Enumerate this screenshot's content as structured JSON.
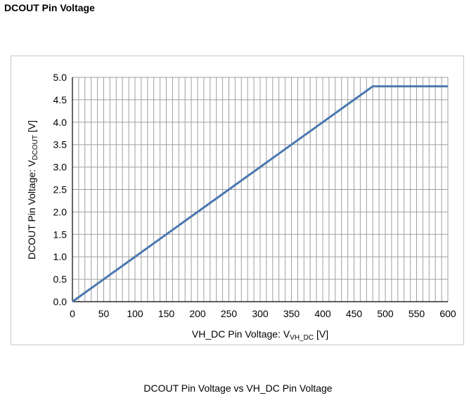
{
  "page": {
    "title": "DCOUT Pin Voltage",
    "caption": "DCOUT Pin Voltage vs VH_DC Pin Voltage"
  },
  "chart_data": {
    "type": "line",
    "xlabel": {
      "main": "VH_DC Pin Voltage: V",
      "sub": "VH_DC",
      "unit": " [V]"
    },
    "ylabel": {
      "main": "DCOUT Pin Voltage: V",
      "sub": "DCOUT",
      "unit": " [V]"
    },
    "xlim": [
      0,
      600
    ],
    "ylim": [
      0,
      5
    ],
    "xticks": [
      "0",
      "50",
      "100",
      "150",
      "200",
      "250",
      "300",
      "350",
      "400",
      "450",
      "500",
      "550",
      "600"
    ],
    "yticks": [
      "0.0",
      "0.5",
      "1.0",
      "1.5",
      "2.0",
      "2.5",
      "3.0",
      "3.5",
      "4.0",
      "4.5",
      "5.0"
    ],
    "grid": true,
    "line_color": "#4a78b0",
    "series": [
      {
        "x": [
          0,
          60,
          80,
          150,
          250,
          300,
          400,
          450,
          480,
          485,
          600
        ],
        "y": [
          0.0,
          0.6,
          0.8,
          1.5,
          2.5,
          3.0,
          4.0,
          4.5,
          4.8,
          4.8,
          4.8
        ]
      }
    ]
  }
}
